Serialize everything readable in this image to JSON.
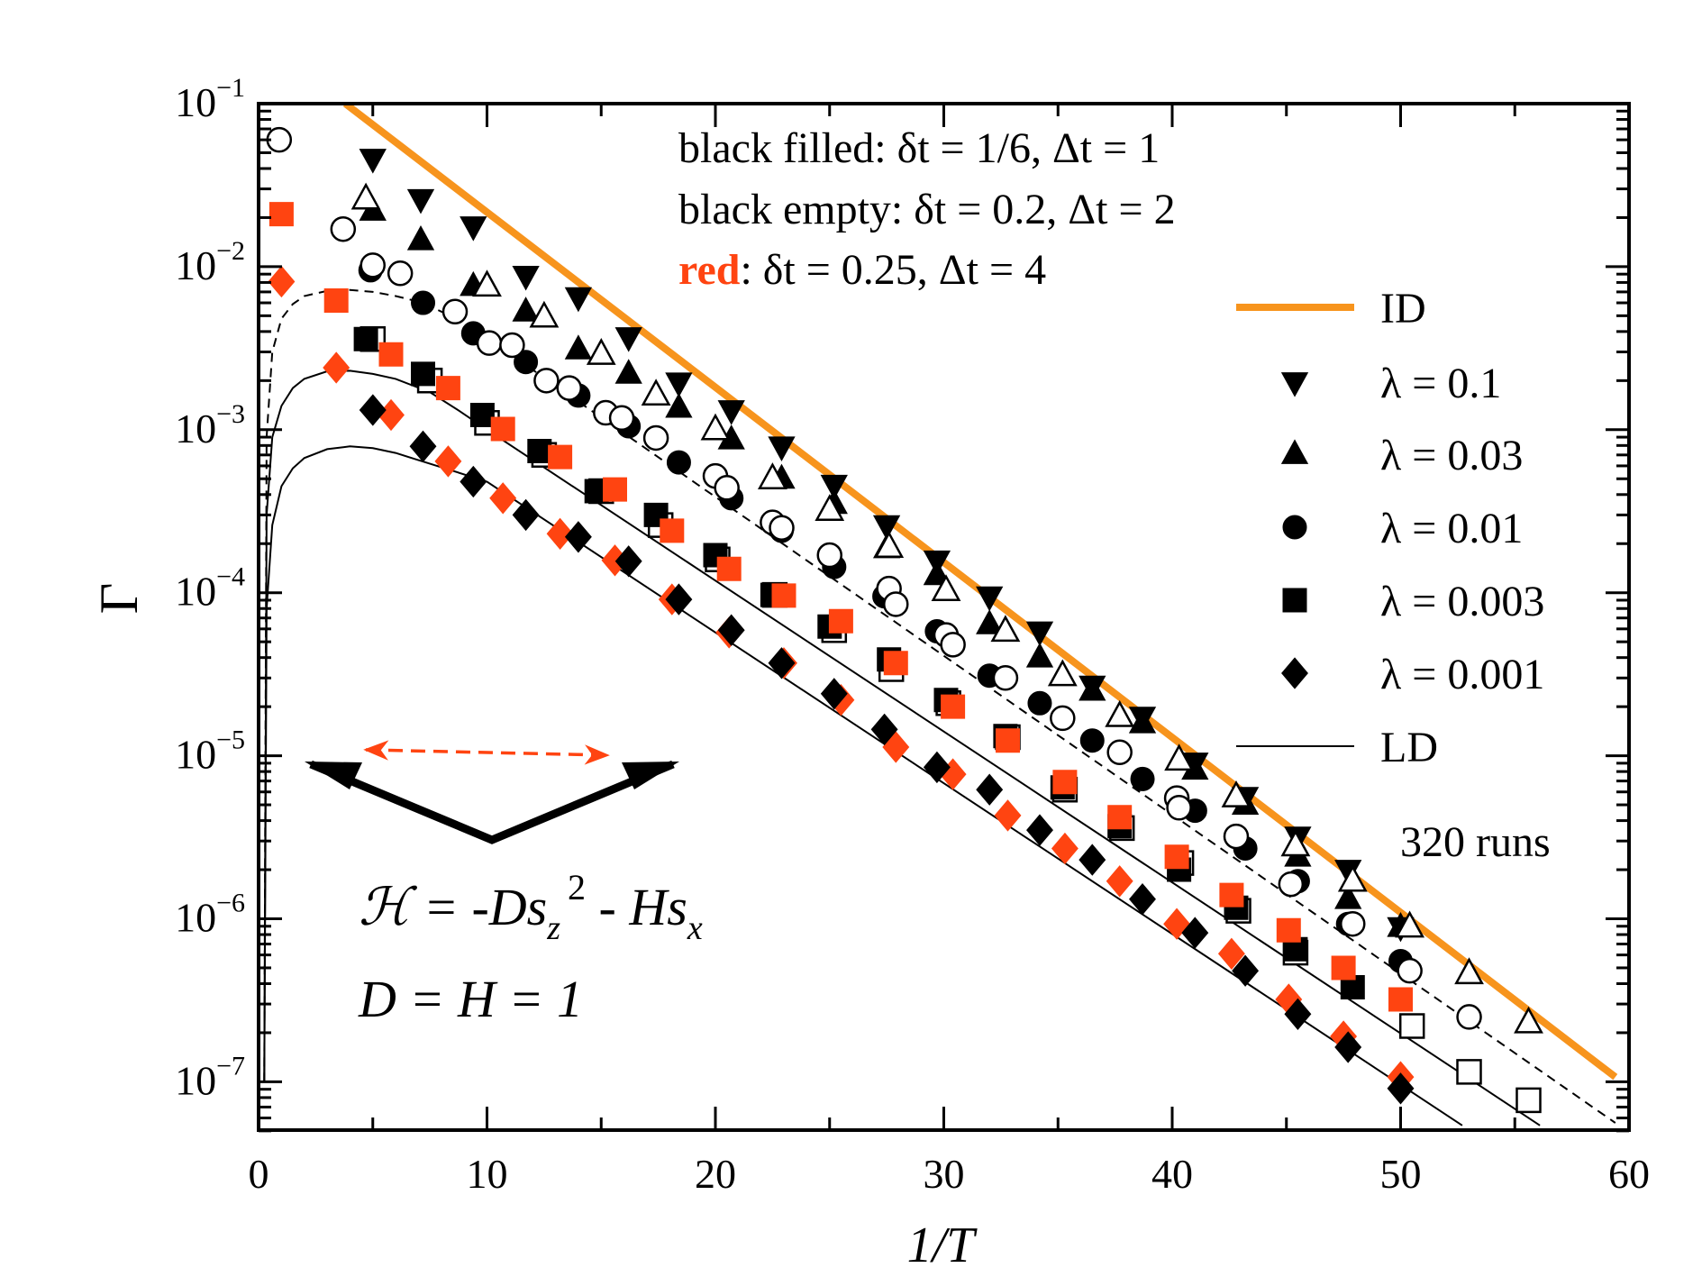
{
  "chart_data": {
    "type": "scatter",
    "xlabel": "1/T",
    "ylabel": "Γ",
    "xlim": [
      0,
      60
    ],
    "ylim": [
      5e-08,
      0.1
    ],
    "yscale": "log",
    "grid": false,
    "legend_placement": "right",
    "x_ticks": [
      "0",
      "10",
      "20",
      "30",
      "40",
      "50",
      "60"
    ],
    "x_tick_values": [
      0,
      10,
      20,
      30,
      40,
      50,
      60
    ],
    "y_ticks": [
      {
        "base": "10",
        "exp": "−1",
        "value": 0.1
      },
      {
        "base": "10",
        "exp": "−2",
        "value": 0.01
      },
      {
        "base": "10",
        "exp": "−3",
        "value": 0.001
      },
      {
        "base": "10",
        "exp": "−4",
        "value": 0.0001
      },
      {
        "base": "10",
        "exp": "−5",
        "value": 1e-05
      },
      {
        "base": "10",
        "exp": "−6",
        "value": 1e-06
      },
      {
        "base": "10",
        "exp": "−7",
        "value": 1e-07
      }
    ],
    "annotations": {
      "filled": {
        "prefix": "black filled: ",
        "text": "δt = 1/6, Δt = 1"
      },
      "empty": {
        "prefix": "black empty: ",
        "text": "δt = 0.2, Δt = 2"
      },
      "red": {
        "prefix": "red",
        "text": ":  δt = 0.25, Δt = 4"
      },
      "runs": "320 runs",
      "hamiltonian": {
        "a": "ℋ = -Ds",
        "sub1": "z",
        "sup": "2",
        "b": " - Hs",
        "sub2": "x"
      },
      "params": "D = H = 1"
    },
    "colors": {
      "id": "#f7941d",
      "red": "#ff4411",
      "black": "#000000"
    },
    "legend": [
      {
        "label": "ID",
        "kind": "line",
        "color": "#f7941d"
      },
      {
        "label": "λ = 0.1",
        "kind": "marker",
        "marker": "triangle-down"
      },
      {
        "label": "λ = 0.03",
        "kind": "marker",
        "marker": "triangle-up"
      },
      {
        "label": "λ = 0.01",
        "kind": "marker",
        "marker": "circle"
      },
      {
        "label": "λ = 0.003",
        "kind": "marker",
        "marker": "square"
      },
      {
        "label": "λ = 0.001",
        "kind": "marker",
        "marker": "diamond"
      },
      {
        "label": "LD",
        "kind": "thinline",
        "color": "#000000"
      }
    ],
    "lines": [
      {
        "name": "ID",
        "style": "thick",
        "color": "#f7941d",
        "x": [
          3.8,
          59.4
        ],
        "y": [
          0.1,
          1.07e-07
        ]
      },
      {
        "name": "LD λ=0.01",
        "style": "dashed",
        "color": "#000000",
        "x": [
          0.25,
          0.35,
          0.6,
          1,
          1.5,
          2,
          3,
          4,
          5,
          6,
          7.2,
          8.5,
          10,
          59.4
        ],
        "y": [
          1e-07,
          0.0009,
          0.003,
          0.0048,
          0.0059,
          0.0066,
          0.0071,
          0.0072,
          0.007,
          0.0066,
          0.006,
          0.0049,
          0.00365,
          5.6e-08
        ]
      },
      {
        "name": "LD λ=0.003",
        "style": "solid",
        "color": "#000000",
        "x": [
          0.25,
          0.35,
          0.6,
          1,
          1.5,
          2,
          3,
          4,
          5,
          6,
          7.5,
          8.8,
          10,
          56.1
        ],
        "y": [
          1e-07,
          0.0003,
          0.0009,
          0.0014,
          0.0018,
          0.00205,
          0.00228,
          0.0023,
          0.0022,
          0.00205,
          0.0017,
          0.0013,
          0.001,
          5.4e-08
        ]
      },
      {
        "name": "LD λ=0.001",
        "style": "solid",
        "color": "#000000",
        "x": [
          0.25,
          0.35,
          0.6,
          1,
          1.5,
          2,
          3,
          4,
          5,
          6,
          7,
          8.5,
          10,
          52.7
        ],
        "y": [
          1e-07,
          8e-05,
          0.00026,
          0.00045,
          0.00058,
          0.00067,
          0.00076,
          0.00079,
          0.00077,
          0.00072,
          0.00065,
          0.00056,
          0.00048,
          5.4e-08
        ]
      }
    ],
    "series": [
      {
        "name": "λ = 0.1 filled",
        "marker": "triangle-down",
        "fill": "filled",
        "color": "#000000",
        "x": [
          5,
          7.1,
          9.4,
          11.7,
          14,
          16.2,
          18.4,
          20.7,
          22.9,
          25.2,
          27.5,
          29.7,
          32,
          34.2,
          36.5,
          38.7,
          41,
          43.2,
          45.5,
          47.7,
          50
        ],
        "y": [
          0.046,
          0.026,
          0.0177,
          0.0088,
          0.0065,
          0.0037,
          0.00195,
          0.00132,
          0.00079,
          0.00046,
          0.00026,
          0.000158,
          9.5e-05,
          5.8e-05,
          2.7e-05,
          1.74e-05,
          9.1e-06,
          5.6e-06,
          3.2e-06,
          2e-06,
          8.9e-07
        ]
      },
      {
        "name": "λ = 0.03 filled",
        "marker": "triangle-up",
        "fill": "filled",
        "color": "#000000",
        "x": [
          5,
          7.1,
          9.4,
          11.7,
          14,
          16.2,
          18.4,
          20.7,
          22.9,
          25.2,
          27.5,
          29.7,
          32,
          34.2,
          36.5,
          38.7,
          41,
          43.2,
          45.5,
          47.7,
          50
        ],
        "y": [
          0.022,
          0.0145,
          0.0076,
          0.0053,
          0.0031,
          0.0022,
          0.00136,
          0.00087,
          0.0005,
          0.00035,
          0.000187,
          0.000128,
          6.4e-05,
          4e-05,
          2.5e-05,
          1.58e-05,
          8.2e-06,
          5e-06,
          2.4e-06,
          1.32e-06,
          8.9e-07
        ]
      },
      {
        "name": "λ = 0.03 empty",
        "marker": "triangle-up",
        "fill": "empty",
        "color": "#000000",
        "x": [
          4.7,
          10,
          12.5,
          15,
          17.4,
          20,
          22.5,
          25,
          27.6,
          30.1,
          32.7,
          35.2,
          37.7,
          40.3,
          42.8,
          45.4,
          47.9,
          50.4,
          53,
          55.6
        ],
        "y": [
          0.026,
          0.0076,
          0.0049,
          0.0029,
          0.00163,
          0.001,
          0.0005,
          0.00032,
          0.00019,
          0.000103,
          5.8e-05,
          3.1e-05,
          1.74e-05,
          9.4e-06,
          5.6e-06,
          2.8e-06,
          1.7e-06,
          8.9e-07,
          4.6e-07,
          2.3e-07
        ]
      },
      {
        "name": "λ = 0.01 filled",
        "marker": "circle",
        "fill": "filled",
        "color": "#000000",
        "x": [
          4.9,
          7.2,
          9.4,
          11.7,
          14,
          16.2,
          18.4,
          20.7,
          22.9,
          25.2,
          27.4,
          29.7,
          32,
          34.2,
          36.5,
          38.7,
          41,
          43.2,
          45.5,
          47.7,
          50
        ],
        "y": [
          0.0095,
          0.006,
          0.0039,
          0.0026,
          0.00162,
          0.00105,
          0.00063,
          0.00038,
          0.00024,
          0.000144,
          9.5e-05,
          5.8e-05,
          3.1e-05,
          2.1e-05,
          1.24e-05,
          7.2e-06,
          4.6e-06,
          2.7e-06,
          1.7e-06,
          9.3e-07,
          5.5e-07
        ]
      },
      {
        "name": "λ = 0.01 empty",
        "marker": "circle",
        "fill": "empty",
        "color": "#000000",
        "x": [
          0.9,
          3.7,
          5,
          6.2,
          8.6,
          10.1,
          11.1,
          12.6,
          13.6,
          15.2,
          15.9,
          17.4,
          20,
          20.5,
          22.5,
          22.9,
          25,
          27.6,
          27.9,
          30.1,
          30.4,
          32.7,
          35.2,
          37.7,
          40.2,
          40.3,
          42.8,
          45.2,
          47.9,
          50.4,
          53
        ],
        "y": [
          0.06,
          0.017,
          0.0102,
          0.0091,
          0.0053,
          0.0034,
          0.0033,
          0.002,
          0.0018,
          0.00127,
          0.00118,
          0.00089,
          0.00052,
          0.00044,
          0.00027,
          0.00025,
          0.00017,
          0.000106,
          8.5e-05,
          5.5e-05,
          4.8e-05,
          3e-05,
          1.7e-05,
          1.05e-05,
          5.5e-06,
          4.8e-06,
          3.2e-06,
          1.63e-06,
          9.3e-07,
          4.8e-07,
          2.5e-07
        ]
      },
      {
        "name": "λ = 0.003 empty",
        "marker": "square",
        "fill": "empty",
        "color": "#000000",
        "x": [
          5,
          7.5,
          10,
          12.5,
          15,
          17.6,
          20.1,
          22.6,
          25.2,
          27.7,
          30.2,
          32.8,
          35.3,
          37.8,
          40.4,
          42.9,
          45.4,
          50.5,
          53,
          55.6
        ],
        "y": [
          0.0036,
          0.002,
          0.0011,
          0.0007,
          0.00042,
          0.00026,
          0.00016,
          9.7e-05,
          5.9e-05,
          3.4e-05,
          2.1e-05,
          1.3e-05,
          6.2e-06,
          3.6e-06,
          2.2e-06,
          1.12e-06,
          6.2e-07,
          2.2e-07,
          1.15e-07,
          7.7e-08
        ]
      },
      {
        "name": "λ = 0.003 filled",
        "marker": "square",
        "fill": "filled",
        "color": "#000000",
        "x": [
          4.7,
          7.2,
          9.8,
          12.3,
          14.8,
          17.4,
          20,
          22.5,
          25,
          27.6,
          30.1,
          32.7,
          35.2,
          37.7,
          40.3,
          42.8,
          45.4,
          47.9
        ],
        "y": [
          0.0036,
          0.0022,
          0.00123,
          0.00074,
          0.00042,
          0.0003,
          0.00017,
          9.7e-05,
          6.2e-05,
          3.9e-05,
          2.2e-05,
          1.32e-05,
          6.4e-06,
          3.7e-06,
          2e-06,
          1.17e-06,
          6.5e-07,
          3.8e-07
        ]
      },
      {
        "name": "λ = 0.003 red",
        "marker": "square",
        "fill": "filled",
        "color": "#ff4411",
        "x": [
          1,
          3.4,
          5.8,
          8.3,
          10.7,
          13.2,
          15.6,
          18.1,
          20.6,
          23,
          25.5,
          27.9,
          30.4,
          32.8,
          35.3,
          37.7,
          40.2,
          42.6,
          45.1,
          47.5,
          50
        ],
        "y": [
          0.021,
          0.0062,
          0.0029,
          0.0018,
          0.00101,
          0.00068,
          0.00043,
          0.00024,
          0.00014,
          9.6e-05,
          6.7e-05,
          3.7e-05,
          2e-05,
          1.24e-05,
          6.9e-06,
          4.2e-06,
          2.4e-06,
          1.4e-06,
          8.5e-07,
          5e-07,
          3.2e-07
        ]
      },
      {
        "name": "λ = 0.001 red",
        "marker": "diamond",
        "fill": "filled",
        "color": "#ff4411",
        "x": [
          1,
          3.4,
          5.8,
          8.3,
          10.7,
          13.2,
          15.6,
          18.1,
          20.6,
          23,
          25.5,
          27.9,
          30.4,
          32.8,
          35.3,
          37.7,
          40.2,
          42.6,
          45.1,
          47.5,
          50
        ],
        "y": [
          0.0081,
          0.0024,
          0.00123,
          0.00064,
          0.00038,
          0.00023,
          0.000158,
          9.1e-05,
          5.7e-05,
          3.7e-05,
          2.2e-05,
          1.13e-05,
          7.7e-06,
          4.3e-06,
          2.7e-06,
          1.7e-06,
          9.3e-07,
          6.1e-07,
          3.2e-07,
          1.9e-07,
          1.07e-07
        ]
      },
      {
        "name": "λ = 0.001 filled",
        "marker": "diamond",
        "fill": "filled",
        "color": "#000000",
        "x": [
          5,
          7.2,
          9.4,
          11.7,
          14,
          16.2,
          18.4,
          20.7,
          22.9,
          25.2,
          27.4,
          29.7,
          32,
          34.2,
          36.5,
          38.7,
          41,
          43.2,
          45.5,
          47.7,
          50
        ],
        "y": [
          0.00132,
          0.00079,
          0.00048,
          0.0003,
          0.00022,
          0.000156,
          9.1e-05,
          5.9e-05,
          3.7e-05,
          2.4e-05,
          1.45e-05,
          8.5e-06,
          6.2e-06,
          3.5e-06,
          2.3e-06,
          1.32e-06,
          8.2e-07,
          4.8e-07,
          2.6e-07,
          1.63e-07,
          9.1e-08
        ]
      }
    ]
  }
}
